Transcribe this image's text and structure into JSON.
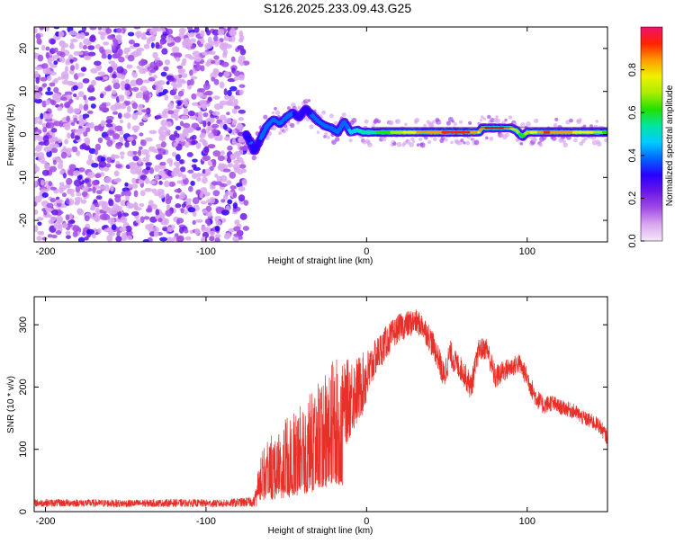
{
  "chart_data": [
    {
      "type": "heatmap",
      "title": "S126.2025.233.09.43.G25",
      "xlabel": "Height of straight line (km)",
      "ylabel": "Frequency (Hz)",
      "xlim": [
        -207,
        150
      ],
      "ylim": [
        -25,
        25
      ],
      "xticks": [
        -200,
        -100,
        0,
        100
      ],
      "xtick_labels": [
        "-200",
        "-100",
        "0",
        "100"
      ],
      "yticks": [
        -20,
        -10,
        0,
        10,
        20
      ],
      "ytick_labels": [
        "-20",
        "-10",
        "0",
        "10",
        "20"
      ],
      "noise_region_x": [
        -207,
        -75
      ],
      "signal_track": {
        "x": [
          -75,
          -72,
          -70,
          -66,
          -62,
          -58,
          -54,
          -50,
          -46,
          -42,
          -38,
          -34,
          -30,
          -26,
          -22,
          -18,
          -14,
          -10,
          -6,
          -2,
          2,
          10,
          20,
          30,
          40,
          50,
          60,
          70,
          72,
          75,
          80,
          85,
          90,
          93,
          97,
          100,
          104,
          108,
          112,
          120,
          130,
          140,
          150
        ],
        "frequency": [
          0,
          -2,
          -4,
          -1,
          2,
          3.5,
          2.5,
          4,
          5,
          4,
          6,
          4.5,
          3,
          2,
          1.5,
          0.5,
          3,
          0.5,
          1,
          0.5,
          0.5,
          0.5,
          0.5,
          0.5,
          0.5,
          0.5,
          0.5,
          0.5,
          1.5,
          1.5,
          1.5,
          1.5,
          1.5,
          1,
          -0.5,
          0.5,
          0.5,
          0.5,
          0.5,
          0.5,
          0.5,
          0.5,
          0.5
        ],
        "amplitude": [
          0.3,
          0.35,
          0.3,
          0.35,
          0.35,
          0.4,
          0.35,
          0.4,
          0.35,
          0.3,
          0.3,
          0.35,
          0.35,
          0.4,
          0.35,
          0.4,
          0.35,
          0.45,
          0.5,
          0.55,
          0.55,
          0.6,
          0.7,
          0.8,
          0.85,
          0.9,
          0.95,
          0.8,
          0.85,
          0.9,
          0.95,
          0.9,
          0.8,
          0.7,
          0.6,
          0.7,
          0.75,
          0.85,
          0.9,
          0.85,
          0.8,
          0.75,
          0.6
        ]
      },
      "colorbar": {
        "label": "Normalized spectral amplitude",
        "range": [
          0,
          1
        ],
        "ticks": [
          0.0,
          0.2,
          0.4,
          0.6,
          0.8
        ],
        "tick_labels": [
          "0.0",
          "0.2",
          "0.4",
          "0.6",
          "0.8"
        ],
        "colors": [
          "#f6e8fb",
          "#d9a8ee",
          "#a24be6",
          "#6a17e8",
          "#2a00ff",
          "#0066ff",
          "#00ccff",
          "#00e6a0",
          "#22e000",
          "#aaee00",
          "#f0f000",
          "#ff9900",
          "#ff2200",
          "#f01070"
        ]
      }
    },
    {
      "type": "line",
      "xlabel": "Height of straight line (km)",
      "ylabel": "SNR (10 * v/v)",
      "xlim": [
        -207,
        150
      ],
      "ylim": [
        0,
        345
      ],
      "xticks": [
        -200,
        -100,
        0,
        100
      ],
      "xtick_labels": [
        "-200",
        "-100",
        "0",
        "100"
      ],
      "yticks": [
        0,
        100,
        200,
        300
      ],
      "ytick_labels": [
        "0",
        "100",
        "200",
        "300"
      ],
      "series": [
        {
          "name": "SNR",
          "color": "#e8302a",
          "x": [
            -207,
            -180,
            -150,
            -120,
            -90,
            -70,
            -66,
            -60,
            -55,
            -50,
            -45,
            -40,
            -35,
            -30,
            -25,
            -20,
            -15,
            -10,
            -5,
            0,
            5,
            10,
            15,
            20,
            25,
            30,
            35,
            40,
            45,
            48,
            52,
            55,
            60,
            65,
            70,
            75,
            80,
            85,
            90,
            95,
            100,
            105,
            110,
            115,
            120,
            125,
            130,
            135,
            140,
            145,
            150
          ],
          "y": [
            14,
            14,
            13,
            14,
            13,
            16,
            60,
            75,
            85,
            90,
            95,
            110,
            120,
            140,
            150,
            170,
            165,
            185,
            195,
            215,
            245,
            265,
            280,
            295,
            300,
            305,
            298,
            275,
            245,
            215,
            255,
            240,
            225,
            200,
            260,
            262,
            215,
            225,
            232,
            238,
            215,
            185,
            170,
            175,
            168,
            165,
            160,
            150,
            145,
            138,
            118
          ],
          "noise": [
            6,
            6,
            6,
            6,
            6,
            8,
            35,
            45,
            55,
            60,
            65,
            70,
            70,
            75,
            80,
            80,
            70,
            65,
            55,
            45,
            30,
            28,
            25,
            22,
            22,
            20,
            20,
            22,
            20,
            25,
            22,
            20,
            20,
            22,
            18,
            18,
            20,
            18,
            16,
            16,
            16,
            16,
            14,
            14,
            12,
            12,
            12,
            12,
            12,
            12,
            12
          ]
        }
      ]
    }
  ]
}
